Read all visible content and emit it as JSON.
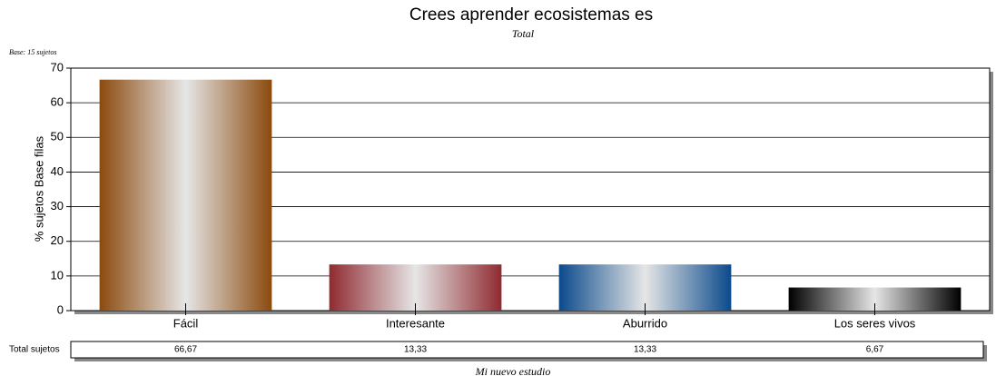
{
  "chart_data": {
    "type": "bar",
    "title": "Crees aprender ecosistemas es",
    "subtitle": "Total",
    "note": "Base: 15 sujetos",
    "ylabel": "% sujetos Base filas",
    "categories": [
      "Fácil",
      "Interesante",
      "Aburrido",
      "Los seres vivos"
    ],
    "values": [
      66.67,
      13.33,
      13.33,
      6.67
    ],
    "value_labels": [
      "66,67",
      "13,33",
      "13,33",
      "6,67"
    ],
    "colors": [
      "#8b4a0e",
      "#8f2a30",
      "#0b4a8c",
      "#000000"
    ],
    "ylim": [
      0,
      70
    ],
    "yticks": [
      0,
      10,
      20,
      30,
      40,
      50,
      60,
      70
    ],
    "grid": true,
    "table_label": "Total sujetos",
    "footer": "Mi nuevo estudio"
  }
}
